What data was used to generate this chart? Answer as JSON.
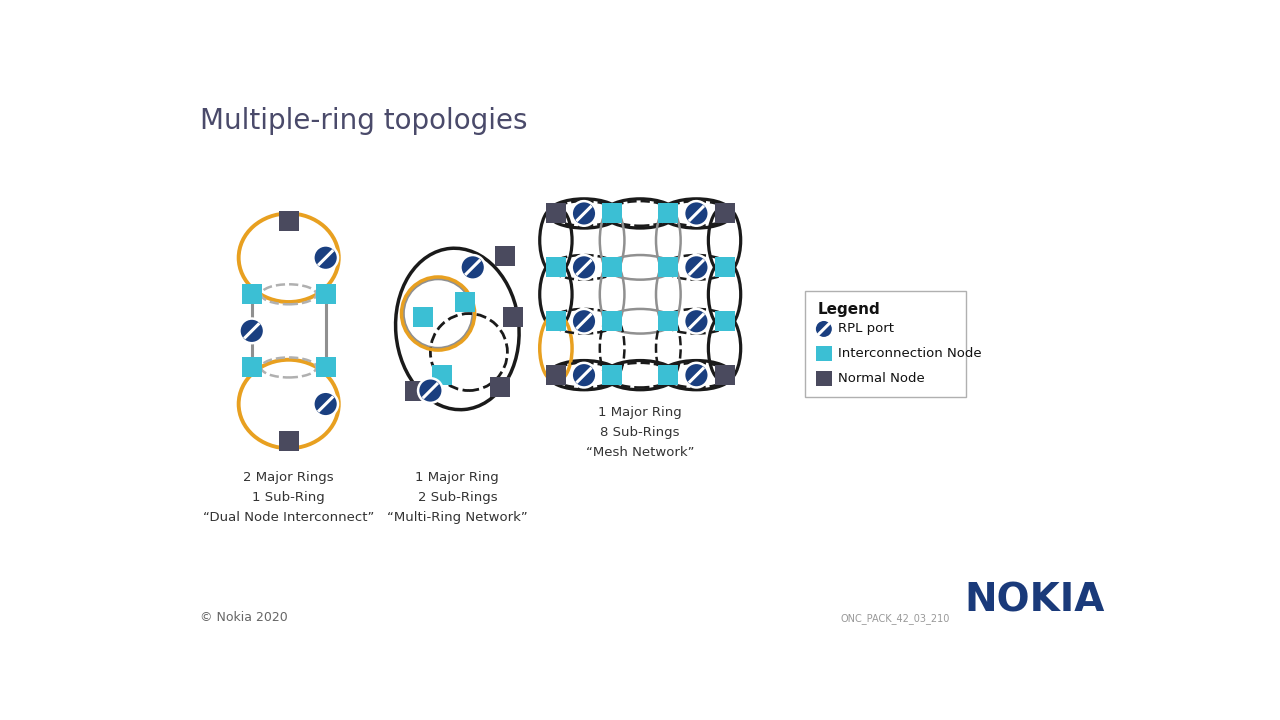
{
  "title": "Multiple-ring topologies",
  "title_fontsize": 20,
  "title_color": "#4a4a6a",
  "bg_color": "#ffffff",
  "colors": {
    "orange": "#E8A020",
    "gray": "#909090",
    "black": "#1a1a1a",
    "dashed_gray": "#b0b0b0",
    "cyan": "#3BBFD4",
    "dark": "#4a4a5e",
    "blue_circle": "#1a3f80"
  },
  "label1": "2 Major Rings\n1 Sub-Ring\n“Dual Node Interconnect”",
  "label2": "1 Major Ring\n2 Sub-Rings\n“Multi-Ring Network”",
  "label3": "1 Major Ring\n8 Sub-Rings\n“Mesh Network”",
  "legend_title": "Legend",
  "legend_items": [
    "RPL port",
    "Interconnection Node",
    "Normal Node"
  ],
  "footer_left": "© Nokia 2020",
  "footer_right": "NOKIA",
  "footnote": "ONC_PACK_42_03_210"
}
